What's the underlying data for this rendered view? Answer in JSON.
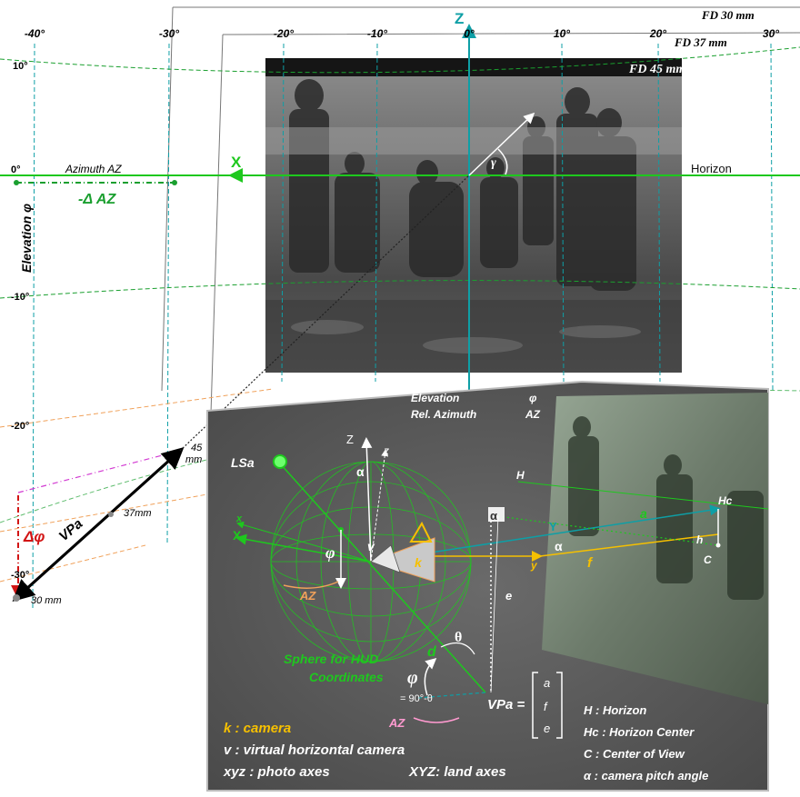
{
  "focal_labels": {
    "fd30": "FD 30 mm",
    "fd37": "FD 37 mm",
    "fd45": "FD 45 mm"
  },
  "azimuth_ticks": [
    "-40°",
    "-30°",
    "-20°",
    "-10°",
    "0°",
    "10°",
    "20°",
    "30°"
  ],
  "elevation_ticks": [
    "10°",
    "0°",
    "-10°",
    "-20°",
    "-30°"
  ],
  "axis_labels": {
    "z_top": "Z",
    "x_left": "X",
    "horizon": "Horizon",
    "azimuth": "Azimuth AZ",
    "elevation": "Elevation φ",
    "delta_az": "-Δ AZ",
    "delta_phi": "Δφ",
    "gamma": "γ"
  },
  "vpa_labels": {
    "vpa": "VPa",
    "mm45_a": "45",
    "mm45_b": "mm",
    "mm37": "37mm",
    "mm30": "30 mm"
  },
  "panel": {
    "elevation": "Elevation",
    "elevation_sym": "φ",
    "rel_azimuth": "Rel. Azimuth",
    "rel_azimuth_sym": "AZ",
    "lsa": "LSa",
    "Z": "Z",
    "z": "z",
    "X": "X",
    "x": "x",
    "Y": "Y",
    "y": "y",
    "alpha": "α",
    "v": "v",
    "k": "k",
    "phi": "φ",
    "az": "AZ",
    "d": "d",
    "theta": "θ",
    "e": "e",
    "f": "f",
    "a": "a",
    "H": "H",
    "Hc": "Hc",
    "h": "h",
    "C": "C",
    "sphere_line1": "Sphere for HUD",
    "sphere_line2": "Coordinates",
    "phi_eq": "= 90°-θ",
    "vpa_eq": "VPa =",
    "vec": [
      "a",
      "f",
      "e"
    ]
  },
  "legend_left": [
    {
      "key": "k : camera"
    },
    {
      "key": "v : virtual horizontal camera"
    },
    {
      "key": "xyz : photo axes",
      "extra": "XYZ: land axes"
    }
  ],
  "legend_right": [
    "H   : Horizon",
    "Hc : Horizon Center",
    "C   : Center of View",
    "α  : camera pitch angle"
  ],
  "colors": {
    "cyan": "#0e9fa6",
    "green": "#1ec81e",
    "dgreen": "#1a9f2f",
    "orange": "#f0a15a",
    "magenta": "#d23ad2",
    "red": "#d21414",
    "yellow": "#f6c000",
    "panel": "#5a5a5a"
  }
}
